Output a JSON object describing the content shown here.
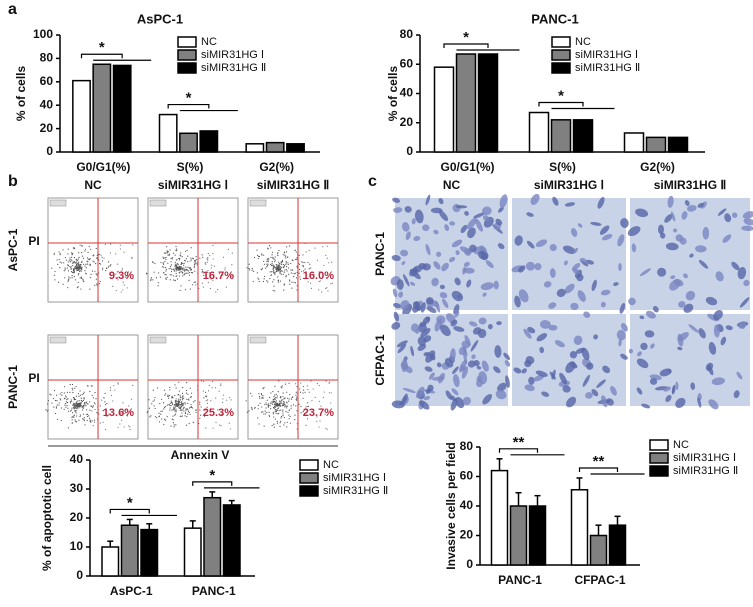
{
  "panels": [
    "a",
    "b",
    "c"
  ],
  "flow": {
    "columns": [
      "NC",
      "siMIR31HG Ⅰ",
      "siMIR31HG Ⅱ"
    ],
    "rows": [
      {
        "label": "AsPC-1",
        "percents": [
          "9.3%",
          "16.7%",
          "16.0%"
        ]
      },
      {
        "label": "PANC-1",
        "percents": [
          "13.6%",
          "25.3%",
          "23.7%"
        ]
      }
    ],
    "y_label": "PI",
    "x_label": "Annexin V"
  },
  "images": {
    "columns": [
      "NC",
      "siMIR31HG Ⅰ",
      "siMIR31HG Ⅱ"
    ],
    "rows": [
      "PANC-1",
      "CFPAC-1"
    ]
  },
  "chart_data": [
    {
      "type": "bar",
      "title": "AsPC-1",
      "ylabel": "% of cells",
      "categories": [
        "G0/G1(%)",
        "S(%)",
        "G2(%)"
      ],
      "series": [
        {
          "name": "NC",
          "color": "#ffffff",
          "values": [
            61,
            32,
            7
          ]
        },
        {
          "name": "siMIR31HG Ⅰ",
          "color": "#808080",
          "values": [
            75,
            16,
            8
          ]
        },
        {
          "name": "siMIR31HG Ⅱ",
          "color": "#000000",
          "values": [
            74,
            18,
            7
          ]
        }
      ],
      "ylim": [
        0,
        100
      ],
      "yticks": [
        0,
        20,
        40,
        60,
        80,
        100
      ],
      "annotations": [
        "*",
        "*"
      ]
    },
    {
      "type": "bar",
      "title": "PANC-1",
      "ylabel": "% of cells",
      "categories": [
        "G0/G1(%)",
        "S(%)",
        "G2(%)"
      ],
      "series": [
        {
          "name": "NC",
          "color": "#ffffff",
          "values": [
            58,
            27,
            13
          ]
        },
        {
          "name": "siMIR31HG Ⅰ",
          "color": "#808080",
          "values": [
            67,
            22,
            10
          ]
        },
        {
          "name": "siMIR31HG Ⅱ",
          "color": "#000000",
          "values": [
            67,
            22,
            10
          ]
        }
      ],
      "ylim": [
        0,
        80
      ],
      "yticks": [
        0,
        20,
        40,
        60,
        80
      ],
      "annotations": [
        "*",
        "*"
      ]
    },
    {
      "type": "bar",
      "ylabel": "% of apoptotic cell",
      "categories": [
        "AsPC-1",
        "PANC-1"
      ],
      "series": [
        {
          "name": "NC",
          "color": "#ffffff",
          "values": [
            10,
            16.5
          ],
          "errors": [
            2,
            2.5
          ]
        },
        {
          "name": "siMIR31HG Ⅰ",
          "color": "#808080",
          "values": [
            17.5,
            27
          ],
          "errors": [
            2,
            2
          ]
        },
        {
          "name": "siMIR31HG Ⅱ",
          "color": "#000000",
          "values": [
            16,
            24.5
          ],
          "errors": [
            2,
            1.5
          ]
        }
      ],
      "ylim": [
        0,
        40
      ],
      "yticks": [
        0,
        10,
        20,
        30,
        40
      ],
      "annotations": [
        "*",
        "*"
      ]
    },
    {
      "type": "bar",
      "ylabel": "Invasive cells per field",
      "categories": [
        "PANC-1",
        "CFPAC-1"
      ],
      "series": [
        {
          "name": "NC",
          "color": "#ffffff",
          "values": [
            64,
            51
          ],
          "errors": [
            8,
            8
          ]
        },
        {
          "name": "siMIR31HG Ⅰ",
          "color": "#808080",
          "values": [
            40,
            20
          ],
          "errors": [
            9,
            7
          ]
        },
        {
          "name": "siMIR31HG Ⅱ",
          "color": "#000000",
          "values": [
            40,
            27
          ],
          "errors": [
            7,
            6
          ]
        }
      ],
      "ylim": [
        0,
        80
      ],
      "yticks": [
        0,
        20,
        40,
        60,
        80
      ],
      "annotations": [
        "**",
        "**"
      ]
    }
  ]
}
